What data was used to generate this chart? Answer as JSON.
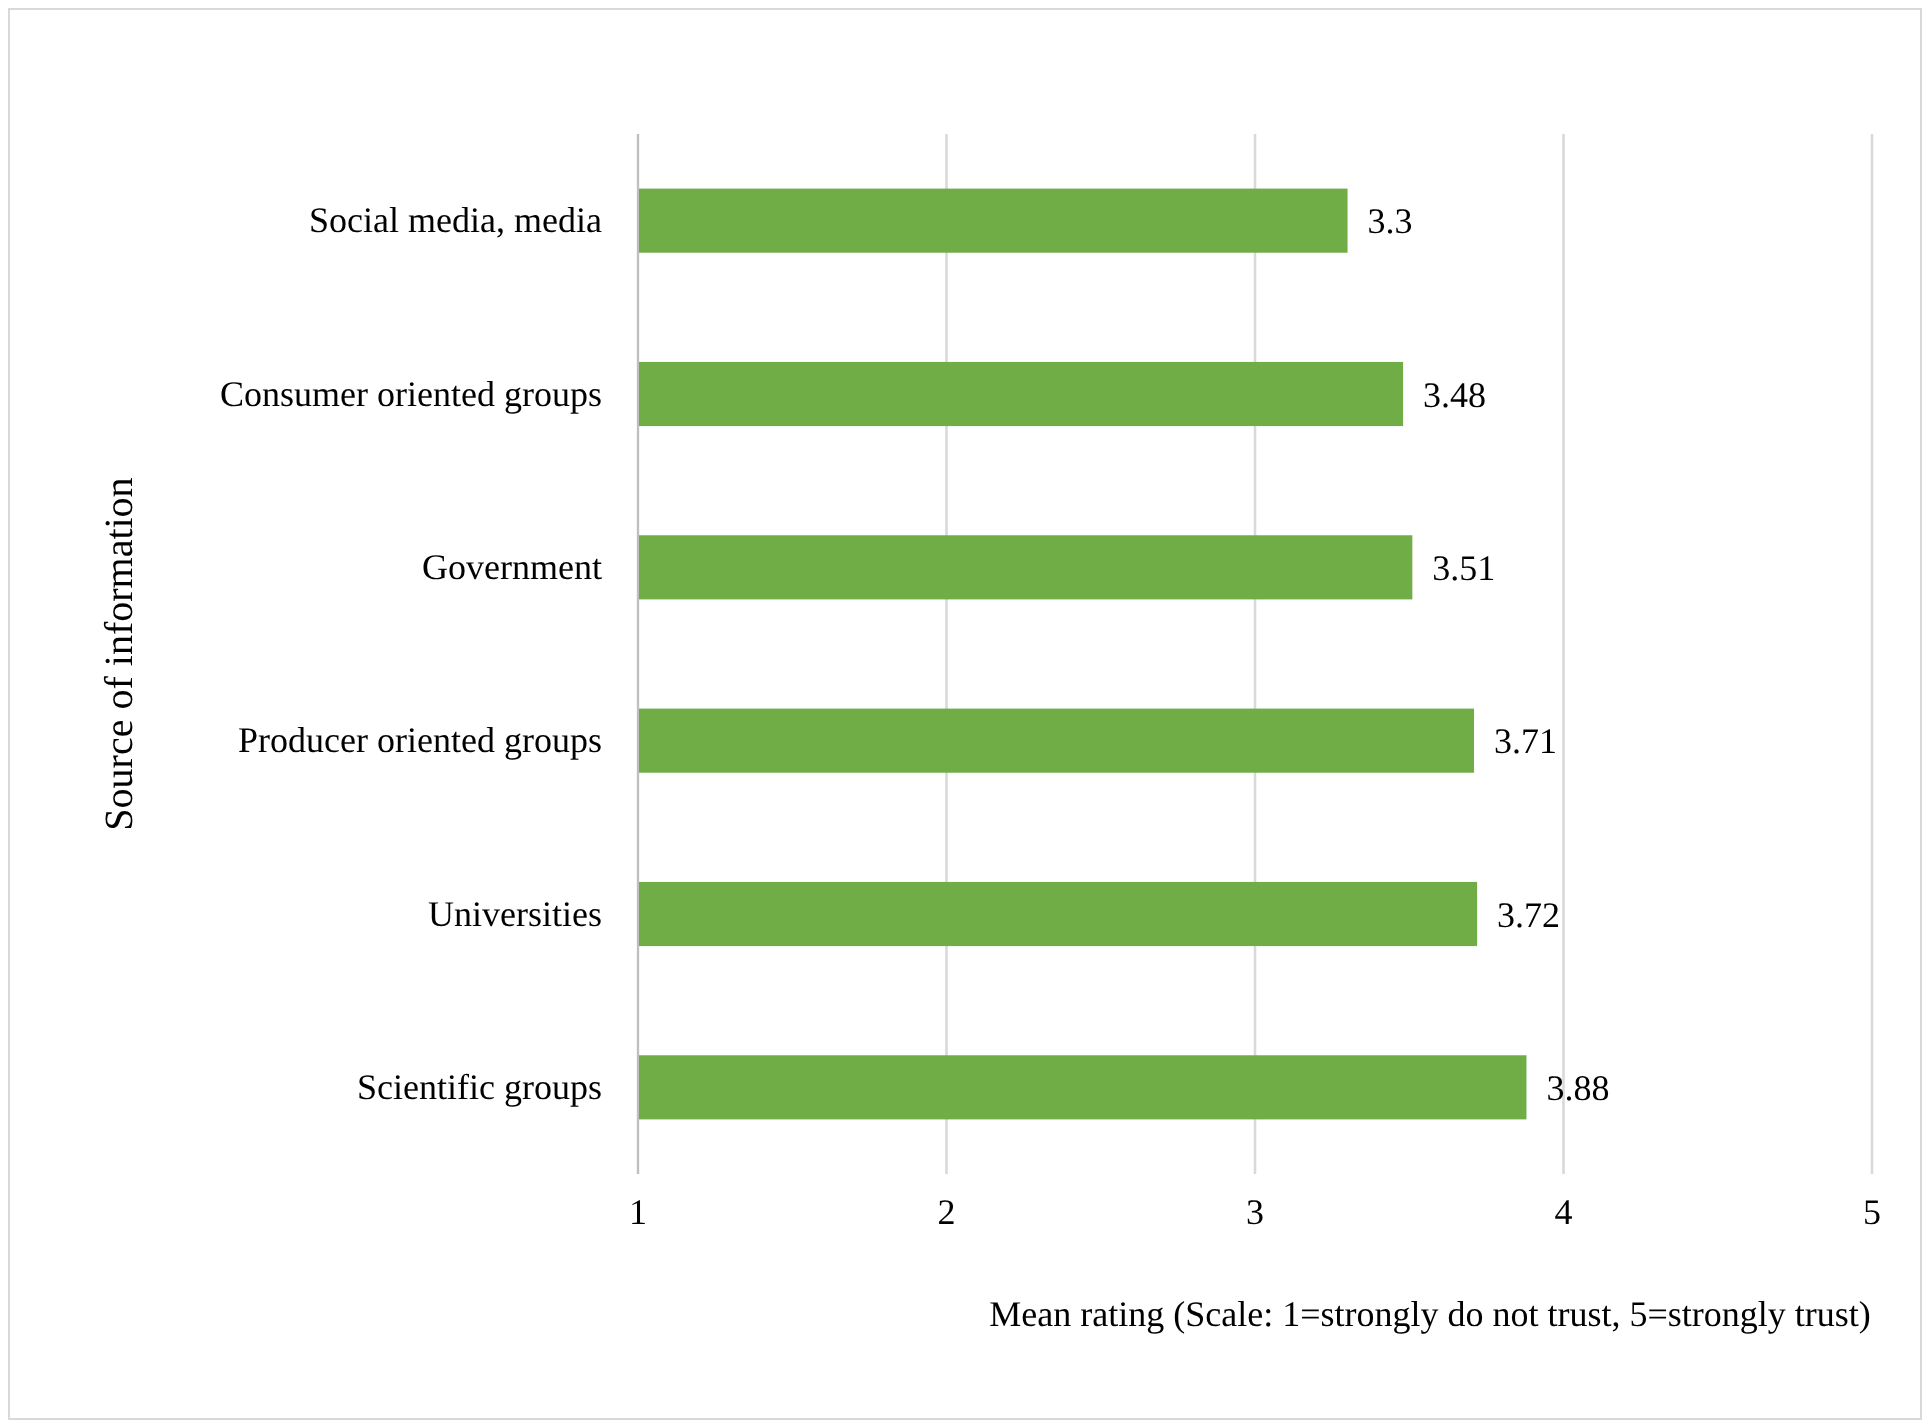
{
  "chart_data": {
    "type": "bar",
    "orientation": "horizontal",
    "xlabel": "Mean rating (Scale: 1=strongly do not trust, 5=strongly trust)",
    "ylabel": "Source of information",
    "categories": [
      "Social media, media",
      "Consumer oriented groups",
      "Government",
      "Producer oriented groups",
      "Universities",
      "Scientific groups"
    ],
    "values": [
      3.3,
      3.48,
      3.51,
      3.71,
      3.72,
      3.88
    ],
    "color": "#70ad47",
    "xlim": [
      1,
      5
    ],
    "xticks": [
      1,
      2,
      3,
      4,
      5
    ],
    "grid": "x",
    "data_labels": true
  }
}
